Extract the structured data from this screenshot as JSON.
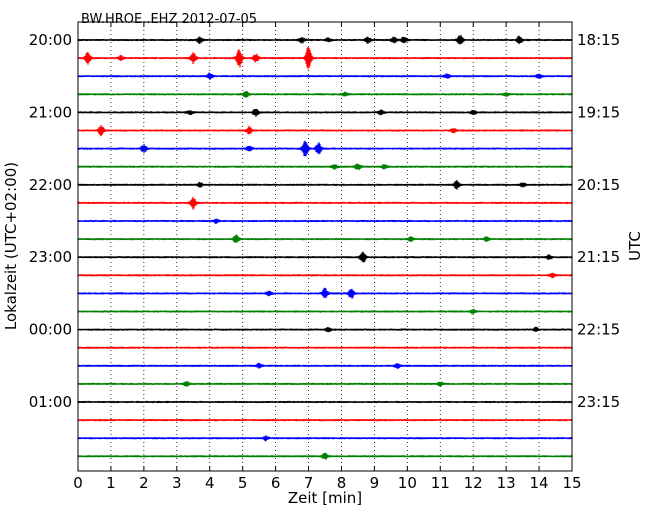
{
  "chart_data": {
    "type": "line",
    "title": "BW.HROE..EHZ 2012-07-05",
    "xlabel": "Zeit  [min]",
    "ylabel_left": "Lokalzeit (UTC+02:00)",
    "ylabel_right": "UTC",
    "xlim": [
      0,
      15
    ],
    "x_ticks": [
      "0",
      "1",
      "2",
      "3",
      "4",
      "5",
      "6",
      "7",
      "8",
      "9",
      "10",
      "11",
      "12",
      "13",
      "14",
      "15"
    ],
    "left_tick_labels": [
      "20:00",
      "21:00",
      "22:00",
      "23:00",
      "00:00",
      "01:00"
    ],
    "right_tick_labels": [
      "18:15",
      "19:15",
      "20:15",
      "21:15",
      "22:15",
      "23:15"
    ],
    "grid": "vertical dotted",
    "trace_colors": [
      "#000000",
      "#ff0000",
      "#0000ff",
      "#008000"
    ],
    "traces": [
      {
        "events": [
          {
            "x": 3.7,
            "amp": 3
          },
          {
            "x": 6.8,
            "amp": 3
          },
          {
            "x": 7.6,
            "amp": 2
          },
          {
            "x": 8.8,
            "amp": 3
          },
          {
            "x": 9.6,
            "amp": 3
          },
          {
            "x": 9.9,
            "amp": 3
          },
          {
            "x": 11.6,
            "amp": 5
          },
          {
            "x": 13.4,
            "amp": 4
          }
        ]
      },
      {
        "events": [
          {
            "x": 0.3,
            "amp": 6
          },
          {
            "x": 1.3,
            "amp": 2
          },
          {
            "x": 3.5,
            "amp": 5
          },
          {
            "x": 4.9,
            "amp": 9
          },
          {
            "x": 5.4,
            "amp": 4
          },
          {
            "x": 7.0,
            "amp": 12
          }
        ]
      },
      {
        "events": [
          {
            "x": 4.0,
            "amp": 3
          },
          {
            "x": 11.2,
            "amp": 2
          },
          {
            "x": 14.0,
            "amp": 2
          }
        ]
      },
      {
        "events": [
          {
            "x": 5.1,
            "amp": 3
          },
          {
            "x": 8.1,
            "amp": 2
          },
          {
            "x": 13.0,
            "amp": 2
          }
        ]
      },
      {
        "events": [
          {
            "x": 3.4,
            "amp": 2
          },
          {
            "x": 5.4,
            "amp": 4
          },
          {
            "x": 9.2,
            "amp": 2
          },
          {
            "x": 12.0,
            "amp": 2
          }
        ]
      },
      {
        "events": [
          {
            "x": 0.7,
            "amp": 5
          },
          {
            "x": 5.2,
            "amp": 4
          },
          {
            "x": 11.4,
            "amp": 2
          }
        ]
      },
      {
        "events": [
          {
            "x": 2.0,
            "amp": 4
          },
          {
            "x": 5.2,
            "amp": 3
          },
          {
            "x": 6.9,
            "amp": 9
          },
          {
            "x": 7.3,
            "amp": 6
          }
        ]
      },
      {
        "events": [
          {
            "x": 7.8,
            "amp": 2
          },
          {
            "x": 8.5,
            "amp": 3
          },
          {
            "x": 9.3,
            "amp": 2
          }
        ]
      },
      {
        "events": [
          {
            "x": 3.7,
            "amp": 2
          },
          {
            "x": 11.5,
            "amp": 4
          },
          {
            "x": 13.5,
            "amp": 2
          }
        ]
      },
      {
        "events": [
          {
            "x": 3.5,
            "amp": 6
          }
        ]
      },
      {
        "events": [
          {
            "x": 4.2,
            "amp": 2
          }
        ]
      },
      {
        "events": [
          {
            "x": 4.8,
            "amp": 4
          },
          {
            "x": 10.1,
            "amp": 2
          },
          {
            "x": 12.4,
            "amp": 2
          }
        ]
      },
      {
        "events": [
          {
            "x": 8.65,
            "amp": 6
          },
          {
            "x": 14.3,
            "amp": 2
          }
        ]
      },
      {
        "events": [
          {
            "x": 14.4,
            "amp": 2
          }
        ]
      },
      {
        "events": [
          {
            "x": 5.8,
            "amp": 2
          },
          {
            "x": 7.5,
            "amp": 5
          },
          {
            "x": 8.3,
            "amp": 5
          }
        ]
      },
      {
        "events": [
          {
            "x": 12.0,
            "amp": 2
          }
        ]
      },
      {
        "events": [
          {
            "x": 7.6,
            "amp": 2
          },
          {
            "x": 13.9,
            "amp": 2
          }
        ]
      },
      {
        "events": []
      },
      {
        "events": [
          {
            "x": 5.5,
            "amp": 2
          },
          {
            "x": 9.7,
            "amp": 2
          }
        ]
      },
      {
        "events": [
          {
            "x": 3.3,
            "amp": 2
          },
          {
            "x": 11.0,
            "amp": 2
          }
        ]
      },
      {
        "events": []
      },
      {
        "events": []
      },
      {
        "events": [
          {
            "x": 5.7,
            "amp": 2
          }
        ]
      },
      {
        "events": [
          {
            "x": 7.5,
            "amp": 3
          }
        ]
      }
    ]
  }
}
